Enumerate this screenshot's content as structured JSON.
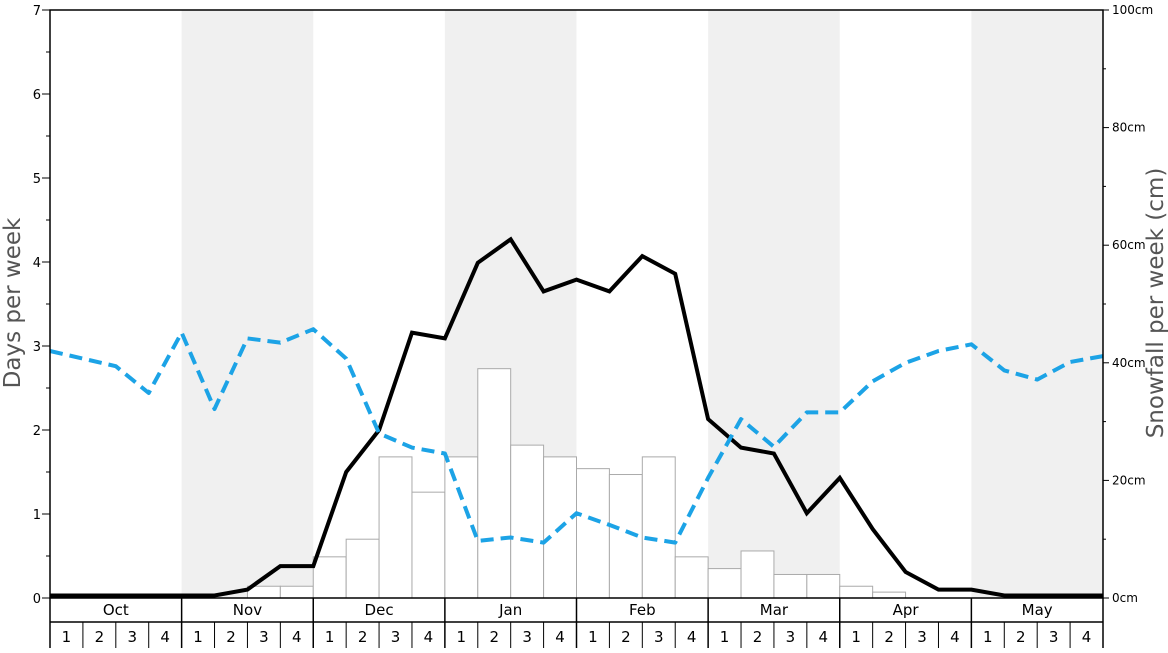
{
  "chart_data": {
    "type": "bar",
    "title": "",
    "ylabel": "Days per week",
    "y2label": "Snowfall per week (cm)",
    "ylim": [
      0,
      7
    ],
    "y2lim": [
      0,
      100
    ],
    "yticks": [
      "0",
      "1",
      "2",
      "3",
      "4",
      "5",
      "6",
      "7"
    ],
    "y2ticks": [
      "0cm",
      "20cm",
      "40cm",
      "60cm",
      "80cm",
      "100cm"
    ],
    "months": [
      "Oct",
      "Nov",
      "Dec",
      "Jan",
      "Feb",
      "Mar",
      "Apr",
      "May"
    ],
    "weeks": [
      "1",
      "2",
      "3",
      "4"
    ],
    "shaded_months": [
      "Nov",
      "Jan",
      "Mar",
      "May"
    ],
    "colors": {
      "bar_fill": "#ffffff",
      "bar_stroke": "#aaaaaa",
      "line_black": "#000000",
      "line_blue": "#1ca3e6",
      "band": "#f0f0f0"
    },
    "series": [
      {
        "type": "bar",
        "axis": "right",
        "values": [
          0,
          0,
          0,
          0,
          0,
          0,
          2,
          2,
          7,
          10,
          24,
          18,
          24,
          39,
          26,
          24,
          22,
          21,
          24,
          7,
          5,
          8,
          4,
          4,
          2,
          1,
          0,
          0,
          0,
          0,
          0,
          0
        ]
      },
      {
        "type": "line",
        "style": "solid",
        "axis": "left",
        "values": [
          0.03,
          0.03,
          0.03,
          0.03,
          0.03,
          0.03,
          0.1,
          0.38,
          0.38,
          1.5,
          2.0,
          3.16,
          3.09,
          3.99,
          4.27,
          3.65,
          3.79,
          3.65,
          4.07,
          3.86,
          2.13,
          1.79,
          1.72,
          1.01,
          1.43,
          0.82,
          0.31,
          0.1,
          0.1,
          0.03,
          0.03,
          0.03,
          0.03
        ]
      },
      {
        "type": "line",
        "style": "dashed",
        "axis": "left",
        "values": [
          2.94,
          2.85,
          2.76,
          2.44,
          3.16,
          2.25,
          3.09,
          3.04,
          3.2,
          2.85,
          1.96,
          1.79,
          1.72,
          0.68,
          0.72,
          0.66,
          1.01,
          0.87,
          0.72,
          0.66,
          1.43,
          2.13,
          1.8,
          2.21,
          2.21,
          2.58,
          2.8,
          2.94,
          3.02,
          2.71,
          2.6,
          2.81,
          2.88
        ]
      }
    ]
  }
}
